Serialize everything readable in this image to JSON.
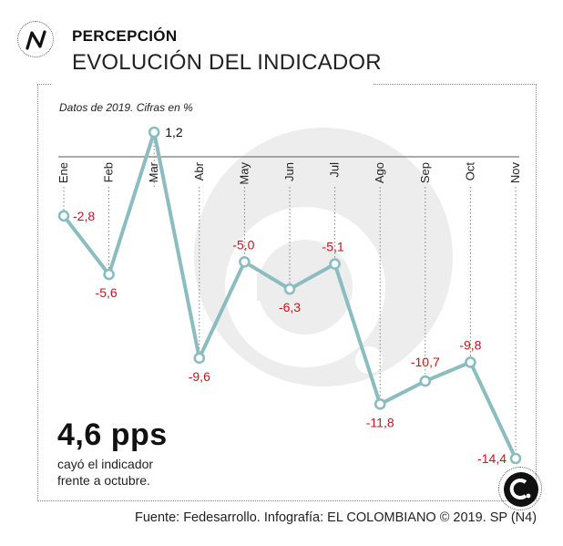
{
  "header": {
    "kicker": "PERCEPCIÓN",
    "title": "EVOLUCIÓN DEL INDICADOR"
  },
  "note": "Datos de 2019. Cifras en %",
  "highlight": {
    "value": "4,6 pps",
    "line1": "cayó el indicador",
    "line2": "frente a octubre."
  },
  "source": "Fuente: Fedesarrollo. Infografía: EL COLOMBIANO © 2019. SP (N4)",
  "colors": {
    "line": "#8bbcbf",
    "label": "#c4161c",
    "watermark": "#ededed"
  },
  "chart_data": {
    "type": "line",
    "title": "EVOLUCIÓN DEL INDICADOR",
    "xlabel": "",
    "ylabel": "",
    "categories": [
      "Ene",
      "Feb",
      "Mar",
      "Abr",
      "May",
      "Jun",
      "Jul",
      "Ago",
      "Sep",
      "Oct",
      "Nov"
    ],
    "values": [
      -2.8,
      -5.6,
      1.2,
      -9.6,
      -5.0,
      -6.3,
      -5.1,
      -11.8,
      -10.7,
      -9.8,
      -14.4
    ],
    "value_labels": [
      "-2,8",
      "-5,6",
      "1,2",
      "-9,6",
      "-5,0",
      "-6,3",
      "-5,1",
      "-11,8",
      "-10,7",
      "-9,8",
      "-14,4"
    ],
    "ylim": [
      -14.4,
      1.2
    ],
    "grid": false,
    "legend": "none"
  }
}
